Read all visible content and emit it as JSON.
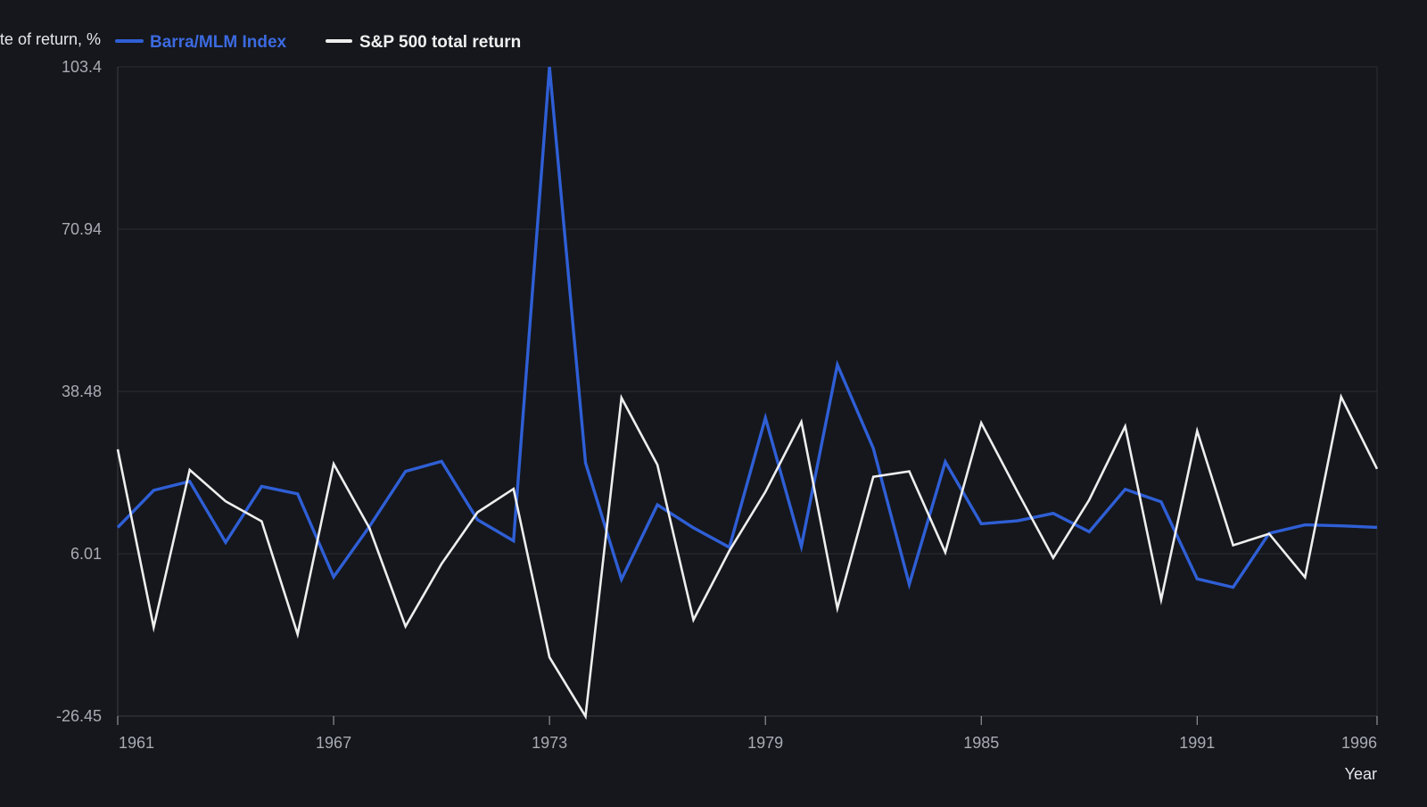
{
  "chart_data": {
    "type": "line",
    "title": "",
    "xlabel": "Year",
    "ylabel": "Rate of return, %",
    "x": [
      1961,
      1962,
      1963,
      1964,
      1965,
      1966,
      1967,
      1968,
      1969,
      1970,
      1971,
      1972,
      1973,
      1974,
      1975,
      1976,
      1977,
      1978,
      1979,
      1980,
      1981,
      1982,
      1983,
      1984,
      1985,
      1986,
      1987,
      1988,
      1989,
      1990,
      1991,
      1992,
      1993,
      1994,
      1995,
      1996
    ],
    "xlim": [
      1961,
      1996
    ],
    "ylim": [
      -26.45,
      103.4
    ],
    "x_ticks": [
      "1961",
      "1967",
      "1973",
      "1979",
      "1985",
      "1991",
      "1996"
    ],
    "y_ticks": [
      "-26.45",
      "6.01",
      "38.48",
      "70.94",
      "103.4"
    ],
    "grid": true,
    "legend_position": "top-left",
    "series": [
      {
        "name": "Barra/MLM Index",
        "color": "#2f5fd6",
        "values": [
          11.3,
          18.7,
          20.5,
          8.3,
          19.5,
          18.0,
          1.4,
          11.5,
          22.5,
          24.5,
          12.8,
          8.6,
          103.4,
          24.2,
          0.9,
          15.8,
          11.2,
          7.3,
          33.2,
          7.5,
          43.8,
          27.1,
          -0.1,
          24.4,
          12.0,
          12.6,
          14.1,
          10.4,
          18.9,
          16.4,
          1.0,
          -0.7,
          10.1,
          11.8,
          11.6,
          11.3
        ]
      },
      {
        "name": "S&P 500 total return",
        "color": "#eeeeee",
        "values": [
          26.9,
          -8.7,
          22.8,
          16.5,
          12.5,
          -10.1,
          24.0,
          11.1,
          -8.5,
          4.0,
          14.3,
          19.0,
          -14.7,
          -26.5,
          37.2,
          23.8,
          -7.2,
          6.6,
          18.4,
          32.4,
          -4.9,
          21.4,
          22.5,
          6.3,
          32.2,
          18.5,
          5.2,
          16.8,
          31.5,
          -3.2,
          30.6,
          7.7,
          10.0,
          1.3,
          37.4,
          23.0
        ]
      }
    ]
  }
}
